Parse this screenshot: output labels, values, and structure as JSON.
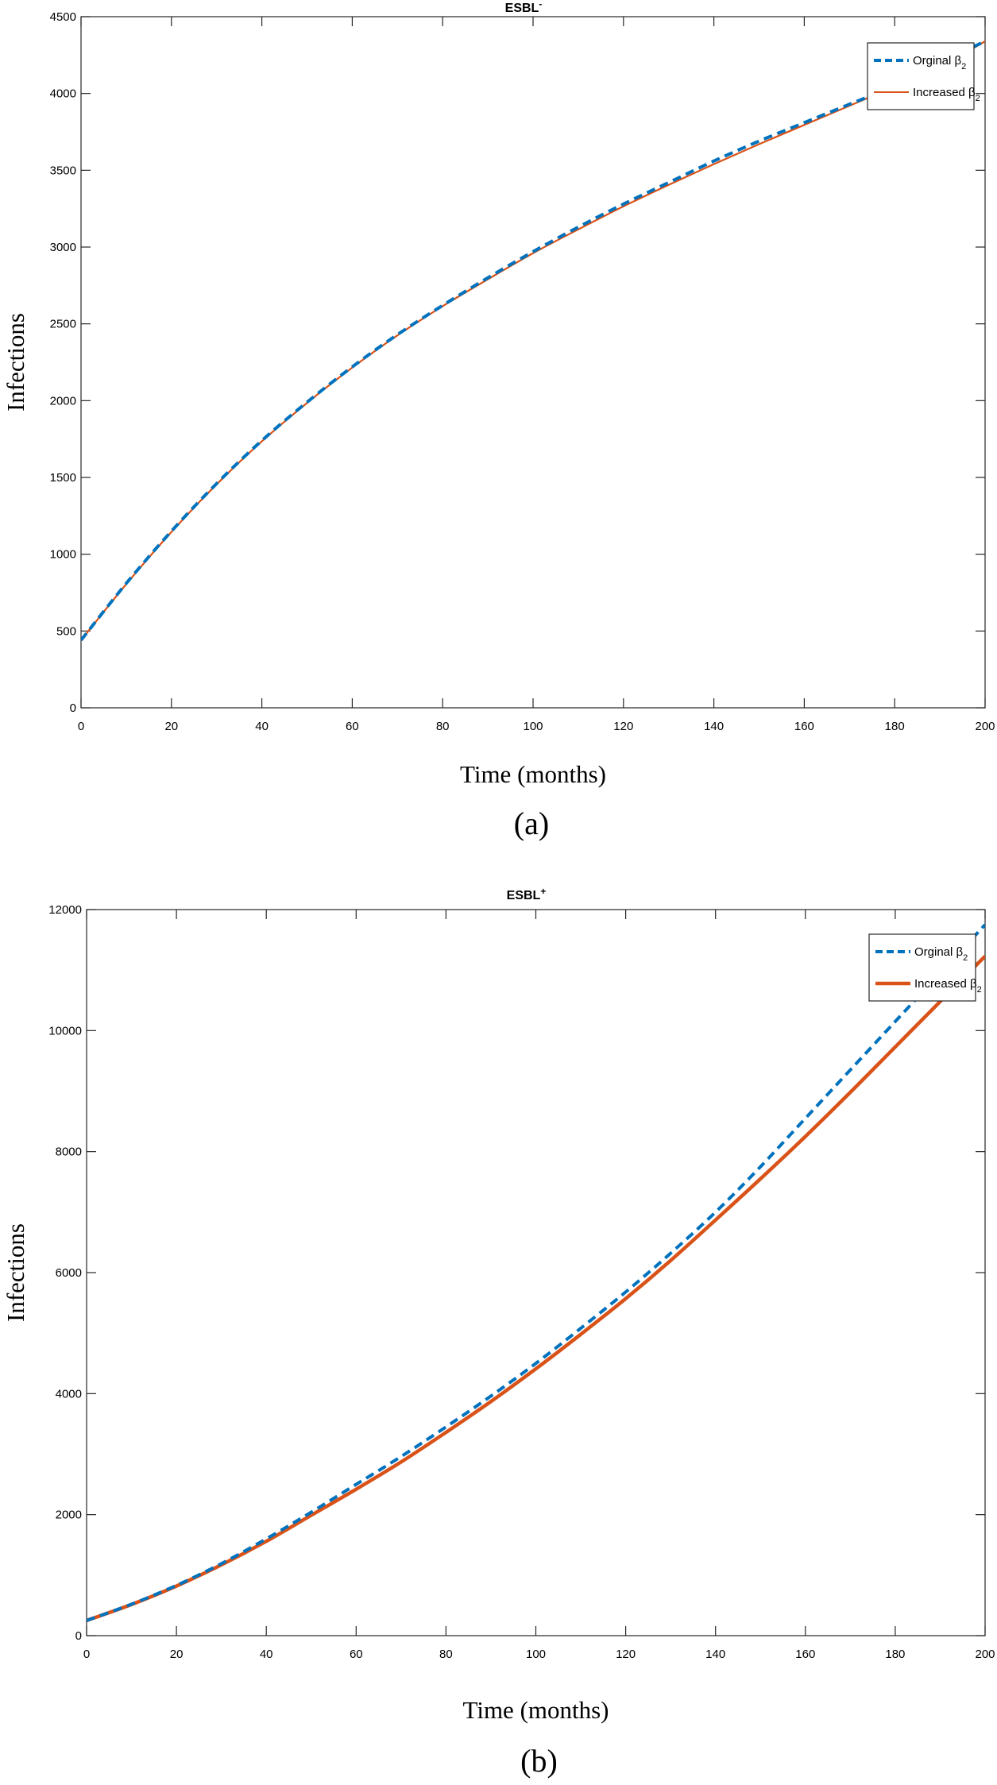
{
  "chart_data": [
    {
      "type": "line",
      "title": "ESBL",
      "title_superscript": "-",
      "xlabel": "Time (months)",
      "ylabel": "Infections",
      "caption": "(a)",
      "xlim": [
        0,
        200
      ],
      "ylim": [
        0,
        4500
      ],
      "xticks": [
        0,
        20,
        40,
        60,
        80,
        100,
        120,
        140,
        160,
        180,
        200
      ],
      "yticks": [
        0,
        500,
        1000,
        1500,
        2000,
        2500,
        3000,
        3500,
        4000,
        4500
      ],
      "grid": false,
      "legend_position": "top-right",
      "x": [
        0,
        10,
        20,
        30,
        40,
        50,
        60,
        70,
        80,
        90,
        100,
        110,
        120,
        130,
        140,
        150,
        160,
        170,
        180,
        190,
        200
      ],
      "series": [
        {
          "name": "Orginal β",
          "name_subscript": "2",
          "color": "#0072BD",
          "style": "dashed",
          "values": [
            440,
            810,
            1150,
            1460,
            1740,
            1990,
            2220,
            2430,
            2620,
            2800,
            2970,
            3130,
            3280,
            3420,
            3560,
            3690,
            3810,
            3930,
            4050,
            4200,
            4340
          ]
        },
        {
          "name": "Increased β",
          "name_subscript": "2",
          "color": "#D95319",
          "style": "solid",
          "values": [
            440,
            805,
            1145,
            1455,
            1735,
            1985,
            2215,
            2425,
            2615,
            2790,
            2960,
            3115,
            3265,
            3405,
            3540,
            3670,
            3795,
            3920,
            4045,
            4170,
            4340
          ]
        }
      ]
    },
    {
      "type": "line",
      "title": "ESBL",
      "title_superscript": "+",
      "xlabel": "Time (months)",
      "ylabel": "Infections",
      "caption": "(b)",
      "xlim": [
        0,
        200
      ],
      "ylim": [
        0,
        12000
      ],
      "xticks": [
        0,
        20,
        40,
        60,
        80,
        100,
        120,
        140,
        160,
        180,
        200
      ],
      "yticks": [
        0,
        2000,
        4000,
        6000,
        8000,
        10000,
        12000
      ],
      "grid": false,
      "legend_position": "top-right",
      "x": [
        0,
        10,
        20,
        30,
        40,
        50,
        60,
        70,
        80,
        90,
        100,
        110,
        120,
        130,
        140,
        150,
        160,
        170,
        180,
        190,
        200
      ],
      "series": [
        {
          "name": "Orginal β",
          "name_subscript": "2",
          "color": "#0072BD",
          "style": "dashed",
          "values": [
            250,
            520,
            830,
            1190,
            1600,
            2040,
            2500,
            2960,
            3450,
            3960,
            4500,
            5080,
            5680,
            6320,
            7000,
            7750,
            8550,
            9350,
            10150,
            10950,
            11750
          ]
        },
        {
          "name": "Increased β",
          "name_subscript": "2",
          "color": "#D95319",
          "style": "solid",
          "values": [
            250,
            515,
            820,
            1170,
            1560,
            1990,
            2420,
            2870,
            3360,
            3870,
            4410,
            4980,
            5570,
            6200,
            6870,
            7550,
            8250,
            8980,
            9730,
            10480,
            11230
          ]
        }
      ]
    }
  ]
}
